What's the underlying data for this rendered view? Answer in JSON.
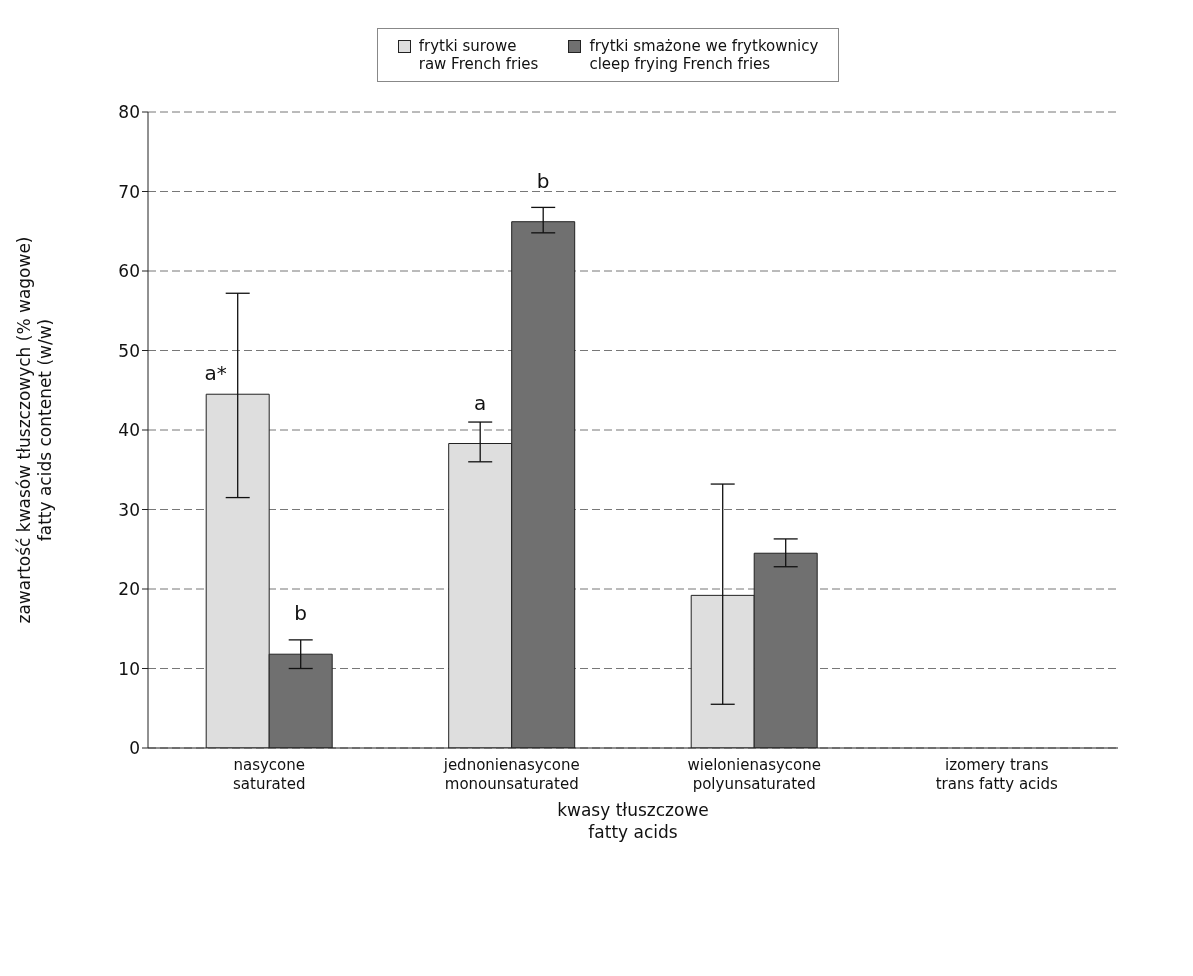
{
  "chart_data": {
    "type": "bar",
    "xlabel": "kwasy tłuszczowe\nfatty acids",
    "ylabel": "zawartość kwasów tłuszczowych (% wagowe)\nfatty acids contenet (w/w)",
    "categories": [
      "nasycone\nsaturated",
      "jednonienasycone\nmonounsaturated",
      "wielonienasycone\npolyunsaturated",
      "izomery trans\ntrans fatty acids"
    ],
    "series": [
      {
        "name": "frytki surowe\nraw French fries",
        "color": "#dedede",
        "values": [
          44.5,
          38.3,
          19.2,
          null
        ],
        "errors": [
          [
            31.5,
            57.2
          ],
          [
            36,
            41
          ],
          [
            5.5,
            33.2
          ],
          null
        ]
      },
      {
        "name": "frytki smażone we frytkownicy\ncleep frying French fries",
        "color": "#707070",
        "values": [
          11.8,
          66.2,
          24.5,
          null
        ],
        "errors": [
          [
            10,
            13.6
          ],
          [
            64.8,
            68
          ],
          [
            22.8,
            26.3
          ],
          null
        ]
      }
    ],
    "ylim": [
      0,
      80
    ],
    "yticks": [
      0,
      10,
      20,
      30,
      40,
      50,
      60,
      70,
      80
    ],
    "grid": "y",
    "legend": "top",
    "annotations": [
      {
        "text": "a*",
        "x": "nasycone\nsaturated",
        "y": 44.5
      },
      {
        "text": "b",
        "x": "nasycone\nsaturated",
        "y": 11.8
      },
      {
        "text": "a",
        "x": "jednonienasycone\nmonounsaturated",
        "y": 38.3
      },
      {
        "text": "b",
        "x": "jednonienasycone\nmonounsaturated",
        "y": 66.2
      }
    ]
  }
}
